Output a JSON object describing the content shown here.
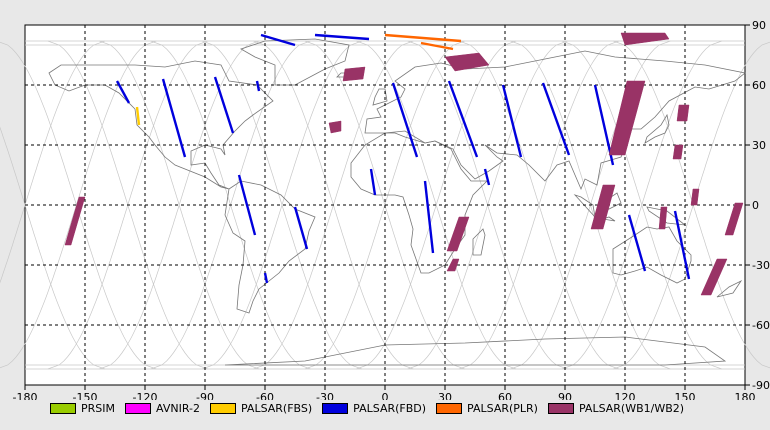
{
  "chart_data": {
    "type": "map",
    "projection": "equirectangular",
    "xlim": [
      -180,
      180
    ],
    "ylim": [
      -90,
      90
    ],
    "x_ticks": [
      "-180",
      "-150",
      "-120",
      "-90",
      "-60",
      "-30",
      "0",
      "30",
      "60",
      "90",
      "120",
      "150",
      "180"
    ],
    "y_ticks": [
      "90",
      "60",
      "30",
      "0",
      "-30",
      "-60",
      "-90"
    ],
    "grid": "dashed",
    "legend_position": "bottom",
    "legend": [
      {
        "name": "PRSIM",
        "color": "#99cc00"
      },
      {
        "name": "AVNIR-2",
        "color": "#ff00ff"
      },
      {
        "name": "PALSAR(FBS)",
        "color": "#ffcc00"
      },
      {
        "name": "PALSAR(FBD)",
        "color": "#0000dd"
      },
      {
        "name": "PALSAR(PLR)",
        "color": "#ff6600"
      },
      {
        "name": "PALSAR(WB1/WB2)",
        "color": "#993366"
      }
    ],
    "swaths": [
      {
        "type": "PALSAR(FBD)",
        "path": [
          [
            -134,
            62
          ],
          [
            -128,
            51
          ]
        ]
      },
      {
        "type": "PALSAR(FBD)",
        "path": [
          [
            -111,
            63
          ],
          [
            -100,
            24
          ]
        ]
      },
      {
        "type": "PALSAR(FBD)",
        "path": [
          [
            -85,
            64
          ],
          [
            -76,
            36
          ]
        ]
      },
      {
        "type": "PALSAR(FBD)",
        "path": [
          [
            -64,
            62
          ],
          [
            -63,
            57
          ]
        ]
      },
      {
        "type": "PALSAR(FBD)",
        "path": [
          [
            -73,
            15
          ],
          [
            -65,
            -15
          ]
        ]
      },
      {
        "type": "PALSAR(FBD)",
        "path": [
          [
            -45,
            -1
          ],
          [
            -39,
            -22
          ]
        ]
      },
      {
        "type": "PALSAR(FBD)",
        "path": [
          [
            -60,
            -34
          ],
          [
            -59,
            -39
          ]
        ]
      },
      {
        "type": "PALSAR(FBD)",
        "path": [
          [
            -7,
            18
          ],
          [
            -5,
            5
          ]
        ]
      },
      {
        "type": "PALSAR(FBD)",
        "path": [
          [
            4,
            61
          ],
          [
            16,
            24
          ]
        ]
      },
      {
        "type": "PALSAR(FBD)",
        "path": [
          [
            20,
            12
          ],
          [
            24,
            -24
          ]
        ]
      },
      {
        "type": "PALSAR(FBD)",
        "path": [
          [
            32,
            62
          ],
          [
            46,
            24
          ]
        ]
      },
      {
        "type": "PALSAR(FBD)",
        "path": [
          [
            50,
            18
          ],
          [
            52,
            10
          ]
        ]
      },
      {
        "type": "PALSAR(FBD)",
        "path": [
          [
            59,
            60
          ],
          [
            68,
            24
          ]
        ]
      },
      {
        "type": "PALSAR(FBD)",
        "path": [
          [
            79,
            61
          ],
          [
            92,
            25
          ]
        ]
      },
      {
        "type": "PALSAR(FBD)",
        "path": [
          [
            105,
            60
          ],
          [
            114,
            20
          ]
        ]
      },
      {
        "type": "PALSAR(FBD)",
        "path": [
          [
            122,
            -5
          ],
          [
            130,
            -33
          ]
        ]
      },
      {
        "type": "PALSAR(FBD)",
        "path": [
          [
            145,
            -3
          ],
          [
            152,
            -37
          ]
        ]
      },
      {
        "type": "PALSAR(FBD)",
        "path": [
          [
            -62,
            85
          ],
          [
            -45,
            80
          ]
        ]
      },
      {
        "type": "PALSAR(FBD)",
        "path": [
          [
            -35,
            85
          ],
          [
            -8,
            83
          ]
        ]
      },
      {
        "type": "PALSAR(FBS)",
        "path": [
          [
            -124,
            49
          ],
          [
            -123,
            40
          ]
        ]
      },
      {
        "type": "PALSAR(PLR)",
        "path": [
          [
            0,
            85
          ],
          [
            38,
            82
          ]
        ]
      },
      {
        "type": "PALSAR(PLR)",
        "path": [
          [
            18,
            81
          ],
          [
            34,
            78
          ]
        ]
      },
      {
        "type": "PALSAR(WB1/WB2)",
        "polygon": [
          [
            118,
            86
          ],
          [
            140,
            86
          ],
          [
            142,
            83
          ],
          [
            120,
            80
          ]
        ]
      },
      {
        "type": "PALSAR(WB1/WB2)",
        "polygon": [
          [
            30,
            74
          ],
          [
            47,
            76
          ],
          [
            52,
            70
          ],
          [
            35,
            67
          ]
        ]
      },
      {
        "type": "PALSAR(WB1/WB2)",
        "polygon": [
          [
            -20,
            68
          ],
          [
            -10,
            69
          ],
          [
            -11,
            63
          ],
          [
            -21,
            62
          ]
        ]
      },
      {
        "type": "PALSAR(WB1/WB2)",
        "polygon": [
          [
            -28,
            41
          ],
          [
            -22,
            42
          ],
          [
            -22,
            37
          ],
          [
            -27,
            36
          ]
        ]
      },
      {
        "type": "PALSAR(WB1/WB2)",
        "polygon": [
          [
            121,
            62
          ],
          [
            130,
            62
          ],
          [
            120,
            25
          ],
          [
            112,
            25
          ]
        ]
      },
      {
        "type": "PALSAR(WB1/WB2)",
        "polygon": [
          [
            147,
            50
          ],
          [
            152,
            50
          ],
          [
            151,
            42
          ],
          [
            146,
            42
          ]
        ]
      },
      {
        "type": "PALSAR(WB1/WB2)",
        "polygon": [
          [
            145,
            30
          ],
          [
            149,
            30
          ],
          [
            148,
            23
          ],
          [
            144,
            23
          ]
        ]
      },
      {
        "type": "PALSAR(WB1/WB2)",
        "polygon": [
          [
            109,
            10
          ],
          [
            115,
            10
          ],
          [
            109,
            -12
          ],
          [
            103,
            -12
          ]
        ]
      },
      {
        "type": "PALSAR(WB1/WB2)",
        "polygon": [
          [
            138,
            -1
          ],
          [
            141,
            -1
          ],
          [
            140,
            -12
          ],
          [
            137,
            -12
          ]
        ]
      },
      {
        "type": "PALSAR(WB1/WB2)",
        "polygon": [
          [
            154,
            8
          ],
          [
            157,
            8
          ],
          [
            156,
            0
          ],
          [
            153,
            0
          ]
        ]
      },
      {
        "type": "PALSAR(WB1/WB2)",
        "polygon": [
          [
            175,
            1
          ],
          [
            179,
            1
          ],
          [
            174,
            -15
          ],
          [
            170,
            -15
          ]
        ]
      },
      {
        "type": "PALSAR(WB1/WB2)",
        "polygon": [
          [
            166,
            -27
          ],
          [
            171,
            -27
          ],
          [
            163,
            -45
          ],
          [
            158,
            -45
          ]
        ]
      },
      {
        "type": "PALSAR(WB1/WB2)",
        "polygon": [
          [
            37,
            -6
          ],
          [
            42,
            -6
          ],
          [
            36,
            -23
          ],
          [
            31,
            -23
          ]
        ]
      },
      {
        "type": "PALSAR(WB1/WB2)",
        "polygon": [
          [
            34,
            -27
          ],
          [
            37,
            -27
          ],
          [
            35,
            -33
          ],
          [
            31,
            -33
          ]
        ]
      },
      {
        "type": "PALSAR(WB1/WB2)",
        "polygon": [
          [
            -153,
            4
          ],
          [
            -150,
            4
          ],
          [
            -157,
            -20
          ],
          [
            -160,
            -20
          ]
        ]
      }
    ]
  }
}
